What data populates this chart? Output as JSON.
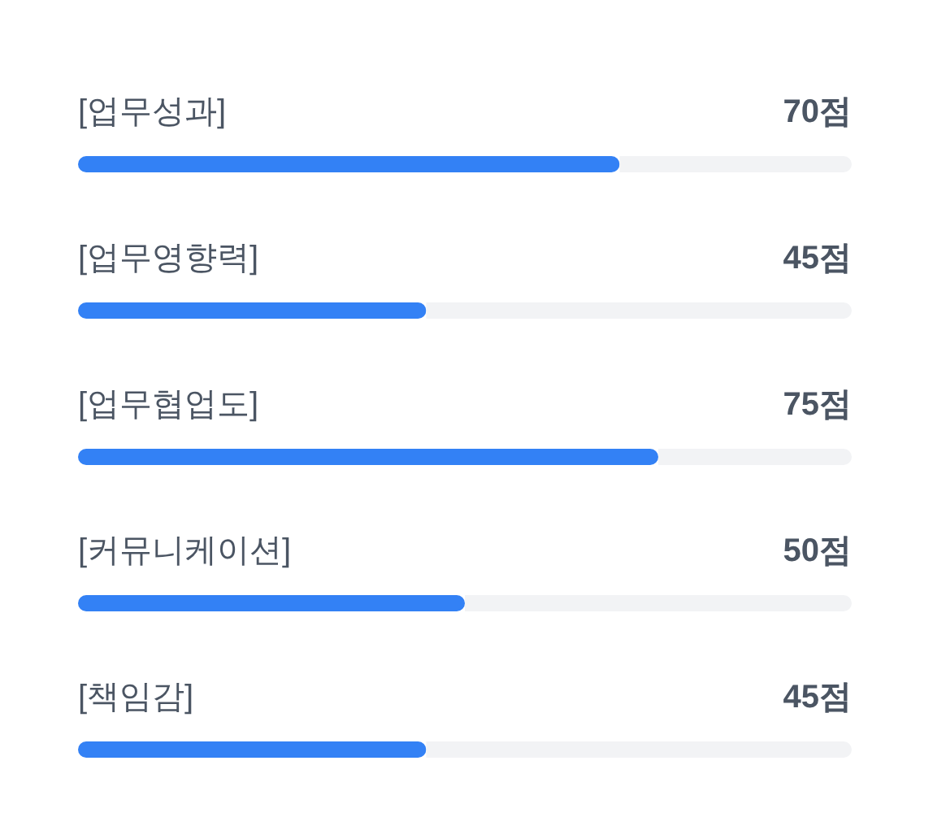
{
  "chart_data": {
    "type": "bar",
    "orientation": "horizontal",
    "categories": [
      "[업무성과]",
      "[업무영향력]",
      "[업무협업도]",
      "[커뮤니케이션]",
      "[책임감]"
    ],
    "values": [
      70,
      45,
      75,
      50,
      45
    ],
    "value_labels": [
      "70점",
      "45점",
      "75점",
      "50점",
      "45점"
    ],
    "color": "#3381f5",
    "xlim": [
      0,
      100
    ],
    "tick_labels": "y"
  }
}
